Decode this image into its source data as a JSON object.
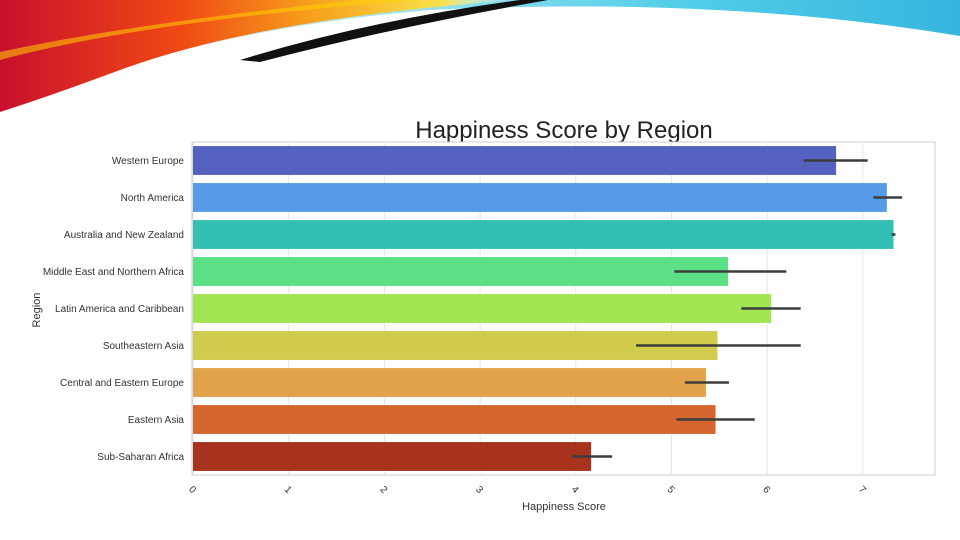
{
  "chart_data": {
    "type": "bar",
    "orientation": "horizontal",
    "title": "Happiness Score by Region",
    "xlabel": "Happiness Score",
    "ylabel": "Region",
    "xlim": [
      0,
      7.7
    ],
    "xticks": [
      "0",
      "1",
      "2",
      "3",
      "4",
      "5",
      "6",
      "7"
    ],
    "grid": true,
    "categories": [
      "Western Europe",
      "North America",
      "Australia and New Zealand",
      "Middle East and Northern Africa",
      "Latin America and Caribbean",
      "Southeastern Asia",
      "Central and Eastern Europe",
      "Eastern Asia",
      "Sub-Saharan Africa"
    ],
    "values": [
      6.72,
      7.25,
      7.32,
      5.59,
      6.04,
      5.48,
      5.36,
      5.46,
      4.16
    ],
    "error_low": [
      6.38,
      7.11,
      7.3,
      5.03,
      5.73,
      4.63,
      5.14,
      5.05,
      3.96
    ],
    "error_high": [
      7.05,
      7.41,
      7.34,
      6.2,
      6.35,
      6.35,
      5.6,
      5.87,
      4.38
    ],
    "colors": [
      "#5561bf",
      "#559be8",
      "#33bfb4",
      "#5be086",
      "#a1e553",
      "#d0cb4d",
      "#e2a24b",
      "#d5662e",
      "#a7331c"
    ]
  }
}
